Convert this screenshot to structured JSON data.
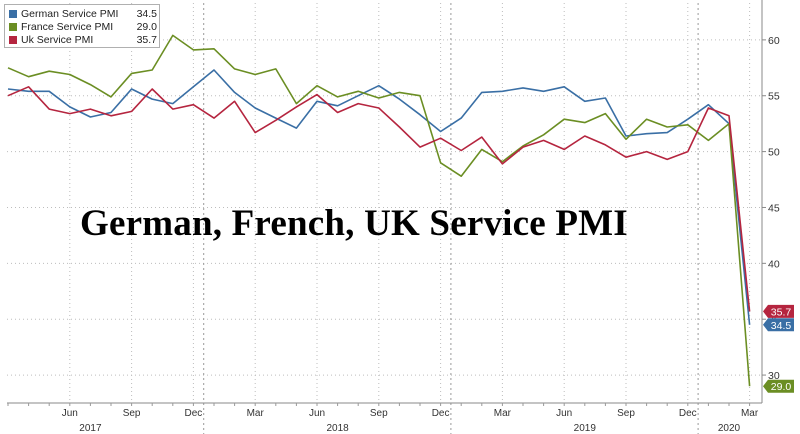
{
  "chart_data": {
    "type": "line",
    "title": "German, French, UK Service PMI",
    "x": [
      "2017-03",
      "2017-04",
      "2017-05",
      "2017-06",
      "2017-07",
      "2017-08",
      "2017-09",
      "2017-10",
      "2017-11",
      "2017-12",
      "2018-01",
      "2018-02",
      "2018-03",
      "2018-04",
      "2018-05",
      "2018-06",
      "2018-07",
      "2018-08",
      "2018-09",
      "2018-10",
      "2018-11",
      "2018-12",
      "2019-01",
      "2019-02",
      "2019-03",
      "2019-04",
      "2019-05",
      "2019-06",
      "2019-07",
      "2019-08",
      "2019-09",
      "2019-10",
      "2019-11",
      "2019-12",
      "2020-01",
      "2020-02",
      "2020-03"
    ],
    "x_tick_labels": [
      {
        "x": "2017-06",
        "label": "Jun"
      },
      {
        "x": "2017-09",
        "label": "Sep"
      },
      {
        "x": "2017-12",
        "label": "Dec"
      },
      {
        "x": "2018-03",
        "label": "Mar"
      },
      {
        "x": "2018-06",
        "label": "Jun"
      },
      {
        "x": "2018-09",
        "label": "Sep"
      },
      {
        "x": "2018-12",
        "label": "Dec"
      },
      {
        "x": "2019-03",
        "label": "Mar"
      },
      {
        "x": "2019-06",
        "label": "Jun"
      },
      {
        "x": "2019-09",
        "label": "Sep"
      },
      {
        "x": "2019-12",
        "label": "Dec"
      },
      {
        "x": "2020-03",
        "label": "Mar"
      }
    ],
    "year_labels": [
      {
        "x": "2017-07",
        "label": "2017"
      },
      {
        "x": "2018-07",
        "label": "2018"
      },
      {
        "x": "2019-07",
        "label": "2019"
      },
      {
        "x": "2020-02",
        "label": "2020"
      }
    ],
    "year_separators": [
      "2017-12",
      "2018-12",
      "2019-12"
    ],
    "y_ticks": [
      30,
      35,
      40,
      45,
      50,
      55,
      60
    ],
    "ylim": [
      27.5,
      63.3
    ],
    "y_axis_side": "right",
    "grid": true,
    "legend_placement": "top-left",
    "series": [
      {
        "name": "German Service PMI",
        "last": "34.5",
        "color": "#3a6fa5",
        "values": [
          55.6,
          55.4,
          55.4,
          54.0,
          53.1,
          53.5,
          55.6,
          54.7,
          54.3,
          55.8,
          57.3,
          55.3,
          53.9,
          53.0,
          52.1,
          54.5,
          54.1,
          55.0,
          55.9,
          54.7,
          53.3,
          51.8,
          53.0,
          55.3,
          55.4,
          55.7,
          55.4,
          55.8,
          54.5,
          54.8,
          51.4,
          51.6,
          51.7,
          52.9,
          54.2,
          52.5,
          34.5
        ]
      },
      {
        "name": "France Service PMI",
        "last": "29.0",
        "color": "#6b8e23",
        "values": [
          57.5,
          56.7,
          57.2,
          56.9,
          56.0,
          54.9,
          57.0,
          57.3,
          60.4,
          59.1,
          59.2,
          57.4,
          56.9,
          57.4,
          54.3,
          55.9,
          54.9,
          55.4,
          54.8,
          55.3,
          55.0,
          49.0,
          47.8,
          50.2,
          49.1,
          50.5,
          51.5,
          52.9,
          52.6,
          53.4,
          51.1,
          52.9,
          52.2,
          52.4,
          51.0,
          52.5,
          29.0
        ]
      },
      {
        "name": "Uk Service PMI",
        "last": "35.7",
        "color": "#b5253f",
        "values": [
          55.0,
          55.8,
          53.8,
          53.4,
          53.8,
          53.2,
          53.6,
          55.6,
          53.8,
          54.2,
          53.0,
          54.5,
          51.7,
          52.8,
          54.0,
          55.1,
          53.5,
          54.3,
          53.9,
          52.2,
          50.4,
          51.2,
          50.1,
          51.3,
          48.9,
          50.4,
          51.0,
          50.2,
          51.4,
          50.6,
          49.5,
          50.0,
          49.3,
          50.0,
          53.9,
          53.2,
          35.7
        ]
      }
    ]
  }
}
